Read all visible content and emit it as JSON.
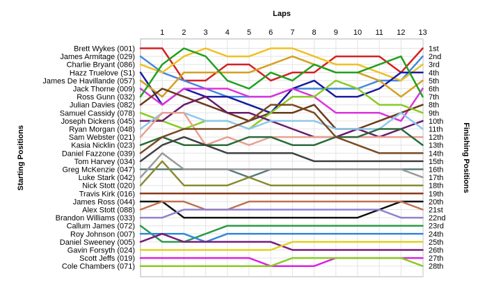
{
  "chart_data": {
    "type": "line",
    "title": "",
    "xlabel": "Laps",
    "ylabel_left": "Starting Positions",
    "ylabel_right": "Finishing Positions",
    "x": [
      0,
      1,
      2,
      3,
      4,
      5,
      6,
      7,
      8,
      9,
      10,
      11,
      12,
      13
    ],
    "xtick_labels": [
      "1",
      "2",
      "3",
      "4",
      "5",
      "6",
      "7",
      "8",
      "9",
      "10",
      "11",
      "12",
      "13"
    ],
    "y_reversed": true,
    "ylim": [
      1,
      28
    ],
    "grid": true,
    "starting_labels": [
      "Brett Wykes (001)",
      "James Armitage (029)",
      "Charlie Bryant (086)",
      "Hazz Truelove (S1)",
      "James De Havillande (057)",
      "Jack Thorne (009)",
      "Ross Gunn (032)",
      "Julian Davies (082)",
      "Samuel Cassidy (078)",
      "Joseph Dickens (045)",
      "Ryan Morgan (048)",
      "Sam Webster (021)",
      "Kasia Nicklin (023)",
      "Daniel Fazzone (039)",
      "Tom Harvey (034)",
      "Greg McKenzie (047)",
      "Luke Stark (042)",
      "Nick Stott (020)",
      "Travis Kirk (016)",
      "James Ross (044)",
      "Alex Stott (088)",
      "Brandon Williams (033)",
      "Callum James (072)",
      "Roy Johnson (007)",
      "Daniel Sweeney (005)",
      "Gavin Forsyth (024)",
      "Scott Jeffs (019)",
      "Cole Chambers (071)"
    ],
    "finishing_labels": [
      "1st",
      "2nd",
      "3rd",
      "4th",
      "5th",
      "6th",
      "7th",
      "8th",
      "9th",
      "10th",
      "11th",
      "12th",
      "13th",
      "14th",
      "15th",
      "16th",
      "17th",
      "18th",
      "19th",
      "20th",
      "21st",
      "22nd",
      "23rd",
      "24th",
      "25th",
      "26th",
      "27th",
      "28th"
    ],
    "series": [
      {
        "color": "#d42020",
        "values": [
          1,
          1,
          5,
          5,
          3,
          3,
          5,
          4,
          4,
          2,
          2,
          2,
          4,
          1
        ]
      },
      {
        "color": "#4488dd",
        "values": [
          2,
          4,
          5,
          6,
          7,
          7,
          7,
          6,
          6,
          6,
          6,
          5,
          5,
          2
        ]
      },
      {
        "color": "#f0c020",
        "values": [
          3,
          4,
          2,
          1,
          2,
          2,
          1,
          1,
          2,
          3,
          3,
          4,
          5,
          3
        ]
      },
      {
        "color": "#1a1aa0",
        "values": [
          4,
          8,
          6,
          7,
          7,
          8,
          9,
          6,
          5,
          7,
          7,
          6,
          4,
          4
        ]
      },
      {
        "color": "#d4a020",
        "values": [
          5,
          7,
          4,
          4,
          4,
          4,
          3,
          2,
          3,
          4,
          4,
          5,
          7,
          5
        ]
      },
      {
        "color": "#dd33dd",
        "values": [
          6,
          8,
          6,
          6,
          6,
          7,
          7,
          6,
          7,
          9,
          9,
          9,
          10,
          6
        ]
      },
      {
        "color": "#20a020",
        "values": [
          7,
          3,
          1,
          2,
          5,
          6,
          4,
          5,
          3,
          4,
          4,
          3,
          2,
          7
        ]
      },
      {
        "color": "#6a3a1a",
        "values": [
          8,
          6,
          7,
          8,
          9,
          10,
          9,
          9,
          8,
          11,
          11,
          10,
          9,
          8
        ]
      },
      {
        "color": "#88cc22",
        "values": [
          9,
          10,
          11,
          10,
          10,
          11,
          9,
          7,
          7,
          5,
          6,
          8,
          8,
          9
        ]
      },
      {
        "color": "#6a1a6a",
        "values": [
          10,
          10,
          8,
          7,
          9,
          9,
          10,
          11,
          12,
          12,
          11,
          12,
          11,
          10
        ]
      },
      {
        "color": "#8fc7ea",
        "values": [
          11,
          9,
          9,
          10,
          10,
          11,
          10,
          10,
          10,
          11,
          11,
          11,
          9,
          11
        ]
      },
      {
        "color": "#e8a090",
        "values": [
          12,
          9,
          9,
          13,
          12,
          13,
          12,
          12,
          12,
          12,
          12,
          12,
          12,
          12
        ]
      },
      {
        "color": "#2a6a3a",
        "values": [
          13,
          12,
          13,
          13,
          13,
          12,
          12,
          13,
          13,
          12,
          12,
          11,
          11,
          13
        ]
      },
      {
        "color": "#7a4a20",
        "values": [
          14,
          12,
          11,
          11,
          11,
          10,
          8,
          8,
          9,
          12,
          13,
          14,
          14,
          14
        ]
      },
      {
        "color": "#404040",
        "values": [
          15,
          13,
          12,
          13,
          14,
          14,
          14,
          14,
          15,
          15,
          15,
          15,
          15,
          15
        ]
      },
      {
        "color": "#5a7a7a",
        "values": [
          16,
          16,
          16,
          16,
          16,
          17,
          16,
          16,
          16,
          16,
          16,
          16,
          16,
          16
        ]
      },
      {
        "color": "#999999",
        "values": [
          17,
          14,
          16,
          16,
          16,
          16,
          16,
          16,
          16,
          16,
          16,
          16,
          16,
          17
        ]
      },
      {
        "color": "#8a8a30",
        "values": [
          18,
          15,
          18,
          18,
          18,
          17,
          18,
          18,
          18,
          18,
          18,
          18,
          18,
          18
        ]
      },
      {
        "color": "#8a3a1a",
        "values": [
          19,
          19,
          19,
          19,
          19,
          19,
          19,
          19,
          19,
          19,
          19,
          19,
          19,
          19
        ]
      },
      {
        "color": "#101010",
        "values": [
          20,
          20,
          22,
          22,
          22,
          22,
          22,
          22,
          22,
          22,
          22,
          21,
          20,
          20
        ]
      },
      {
        "color": "#c07050",
        "values": [
          21,
          20,
          20,
          21,
          21,
          20,
          20,
          20,
          20,
          20,
          20,
          20,
          20,
          21
        ]
      },
      {
        "color": "#9080d0",
        "values": [
          22,
          22,
          21,
          21,
          21,
          21,
          21,
          21,
          21,
          21,
          21,
          21,
          22,
          22
        ]
      },
      {
        "color": "#2a9a4a",
        "values": [
          23,
          25,
          25,
          24,
          23,
          23,
          23,
          23,
          23,
          23,
          23,
          23,
          23,
          23
        ]
      },
      {
        "color": "#3388dd",
        "values": [
          24,
          24,
          24,
          25,
          24,
          24,
          24,
          24,
          24,
          24,
          24,
          24,
          24,
          24
        ]
      },
      {
        "color": "#7a1a7a",
        "values": [
          25,
          24,
          25,
          25,
          25,
          25,
          25,
          26,
          26,
          26,
          26,
          26,
          26,
          26
        ]
      },
      {
        "color": "#e0d020",
        "values": [
          26,
          26,
          26,
          26,
          26,
          26,
          26,
          25,
          25,
          25,
          25,
          25,
          25,
          25
        ]
      },
      {
        "color": "#dd22dd",
        "values": [
          27,
          27,
          27,
          27,
          27,
          27,
          28,
          28,
          28,
          27,
          27,
          27,
          27,
          27
        ]
      },
      {
        "color": "#88cc22",
        "values": [
          28,
          28,
          28,
          28,
          28,
          28,
          28,
          27,
          27,
          27,
          27,
          27,
          27,
          28
        ]
      }
    ]
  }
}
